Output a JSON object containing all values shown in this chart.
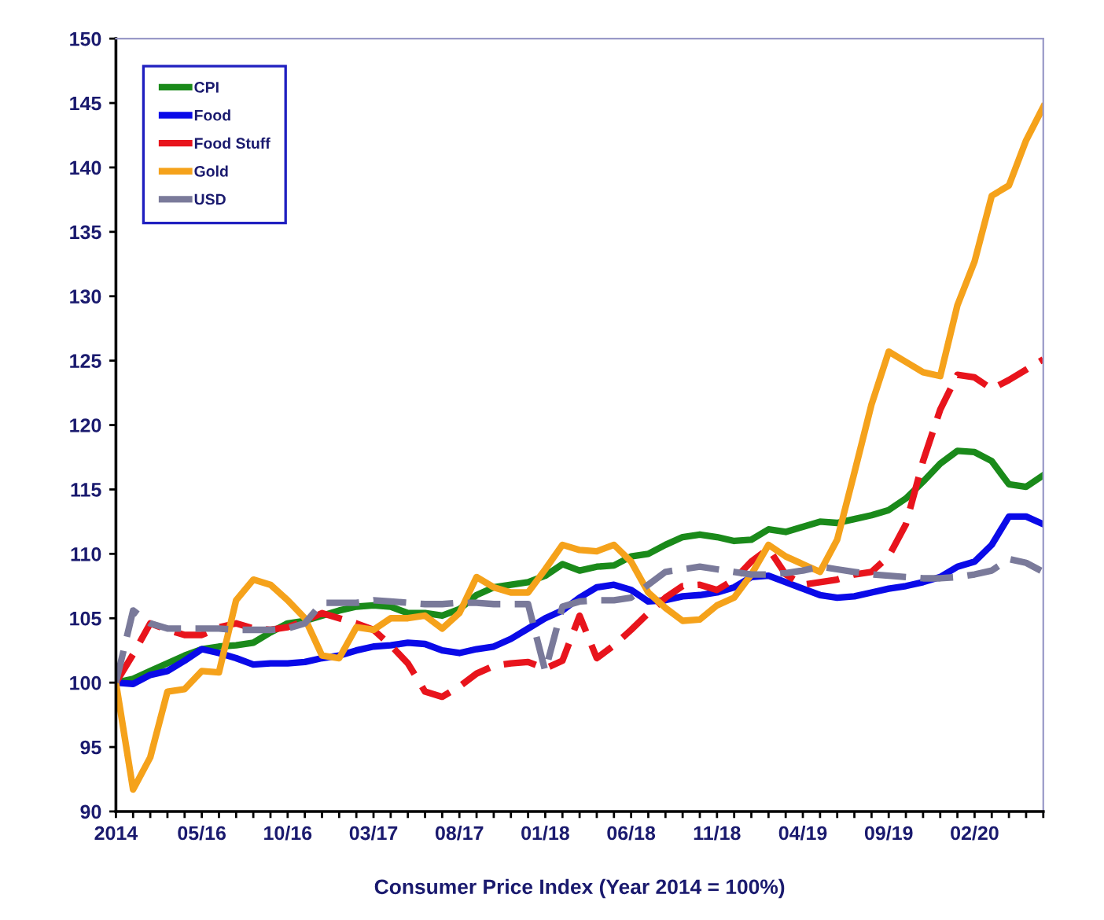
{
  "chart_data": {
    "type": "line",
    "xlabel": "Consumer Price Index (Year 2014 = 100%)",
    "categories": [
      "2014",
      null,
      null,
      null,
      null,
      "05/16",
      null,
      null,
      null,
      null,
      "10/16",
      null,
      null,
      null,
      null,
      "03/17",
      null,
      null,
      null,
      null,
      "08/17",
      null,
      null,
      null,
      null,
      "01/18",
      null,
      null,
      null,
      null,
      "06/18",
      null,
      null,
      null,
      null,
      "11/18",
      null,
      null,
      null,
      null,
      "04/19",
      null,
      null,
      null,
      null,
      "09/19",
      null,
      null,
      null,
      null,
      "02/20",
      null,
      null,
      null,
      null
    ],
    "ylim": [
      90,
      150
    ],
    "yticks": [
      90,
      95,
      100,
      105,
      110,
      115,
      120,
      125,
      130,
      135,
      140,
      145,
      150
    ],
    "grid": false,
    "legend": "top left",
    "marker": "none",
    "series": [
      {
        "name": "CPI",
        "color": "#1a8a1a",
        "line_style": "solid",
        "values": [
          100,
          100.3,
          100.9,
          101.5,
          102.1,
          102.6,
          102.8,
          102.9,
          103.1,
          103.9,
          104.6,
          104.8,
          105.2,
          105.6,
          105.9,
          106.0,
          105.9,
          105.4,
          105.4,
          105.2,
          105.7,
          106.8,
          107.4,
          107.6,
          107.8,
          108.3,
          109.2,
          108.7,
          109.0,
          109.1,
          109.8,
          110.0,
          110.7,
          111.3,
          111.5,
          111.3,
          111.0,
          111.1,
          111.9,
          111.7,
          112.1,
          112.5,
          112.4,
          112.7,
          113.0,
          113.4,
          114.3,
          115.6,
          117.0,
          118.0,
          117.9,
          117.2,
          115.4,
          115.2,
          116.1
        ]
      },
      {
        "name": "Food",
        "color": "#0a0ae8",
        "line_style": "solid",
        "values": [
          100,
          99.9,
          100.6,
          100.9,
          101.7,
          102.6,
          102.3,
          101.9,
          101.4,
          101.5,
          101.5,
          101.6,
          101.9,
          102.1,
          102.5,
          102.8,
          102.9,
          103.1,
          103.0,
          102.5,
          102.3,
          102.6,
          102.8,
          103.4,
          104.2,
          105.0,
          105.6,
          106.6,
          107.4,
          107.6,
          107.2,
          106.3,
          106.4,
          106.7,
          106.8,
          107.0,
          107.4,
          108.2,
          108.3,
          107.8,
          107.3,
          106.8,
          106.6,
          106.7,
          107.0,
          107.3,
          107.5,
          107.8,
          108.2,
          109.0,
          109.4,
          110.7,
          112.9,
          112.9,
          112.3
        ]
      },
      {
        "name": "Food Stuff",
        "color": "#e8141c",
        "line_style": "dashed",
        "values": [
          100,
          102.2,
          104.6,
          104.1,
          103.7,
          103.7,
          104.3,
          104.6,
          104.2,
          104.1,
          104.3,
          104.8,
          105.4,
          105.0,
          104.6,
          104.1,
          102.9,
          101.5,
          99.3,
          98.9,
          99.7,
          100.7,
          101.3,
          101.5,
          101.6,
          101.1,
          101.7,
          105.2,
          101.9,
          102.9,
          104.1,
          105.4,
          106.6,
          107.5,
          107.6,
          107.2,
          108.0,
          109.4,
          110.4,
          108.4,
          107.6,
          107.8,
          108.0,
          108.4,
          108.6,
          109.8,
          112.3,
          117.2,
          121.2,
          123.9,
          123.7,
          122.8,
          123.5,
          124.3,
          125.1
        ]
      },
      {
        "name": "Gold",
        "color": "#f5a21b",
        "line_style": "solid",
        "values": [
          100,
          91.7,
          94.2,
          99.3,
          99.5,
          100.9,
          100.8,
          106.4,
          108.0,
          107.6,
          106.4,
          105.0,
          102.1,
          101.9,
          104.3,
          104.1,
          105.0,
          105.0,
          105.2,
          104.2,
          105.4,
          108.2,
          107.4,
          107.0,
          107.0,
          108.8,
          110.7,
          110.3,
          110.2,
          110.7,
          109.4,
          107.0,
          105.8,
          104.8,
          104.9,
          106.0,
          106.6,
          108.4,
          110.7,
          109.8,
          109.2,
          108.6,
          111.1,
          116.3,
          121.6,
          125.7,
          124.9,
          124.1,
          123.8,
          129.3,
          132.7,
          137.8,
          138.6,
          142.1,
          144.7
        ]
      },
      {
        "name": "USD",
        "color": "#7a7a9a",
        "line_style": "dashed",
        "values": [
          100,
          105.6,
          104.6,
          104.2,
          104.2,
          104.2,
          104.2,
          104.1,
          104.1,
          104.1,
          104.2,
          104.6,
          106.2,
          106.2,
          106.2,
          106.4,
          106.3,
          106.2,
          106.1,
          106.1,
          106.2,
          106.2,
          106.1,
          106.1,
          106.1,
          100.9,
          105.9,
          106.3,
          106.4,
          106.4,
          106.6,
          107.6,
          108.6,
          108.8,
          109.0,
          108.8,
          108.6,
          108.4,
          108.4,
          108.5,
          108.7,
          109.0,
          108.8,
          108.6,
          108.4,
          108.3,
          108.2,
          108.1,
          108.1,
          108.2,
          108.4,
          108.7,
          109.6,
          109.3,
          108.6
        ]
      }
    ]
  }
}
